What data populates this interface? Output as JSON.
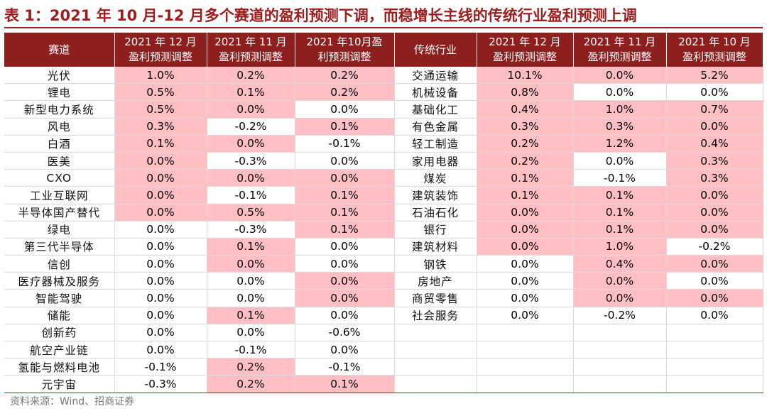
{
  "title": "表 1：2021 年 10 月-12 月多个赛道的盈利预测下调，而稳增长主线的传统行业盈利预测上调",
  "highlight_color": "#ffbfc5",
  "header_color": "#8d1f1f",
  "headers": {
    "left_name": "赛道",
    "right_name": "传统行业",
    "columns": [
      [
        "2021 年 12 月",
        "盈利预测调整"
      ],
      [
        "2021 年 11 月",
        "盈利预测调整"
      ],
      [
        "2021 年10月盈",
        "利预测调整"
      ],
      [
        "2021 年 12 月",
        "盈利预测调整"
      ],
      [
        "2021 年 11 月",
        "盈利预测调整"
      ],
      [
        "2021 年 10 月",
        "盈利预测调整"
      ]
    ]
  },
  "rows": [
    {
      "l": "光伏",
      "lv": [
        {
          "v": "1.0%",
          "h": 1
        },
        {
          "v": "0.2%",
          "h": 1
        },
        {
          "v": "0.2%",
          "h": 1
        }
      ],
      "r": "交通运输",
      "rv": [
        {
          "v": "10.1%",
          "h": 1
        },
        {
          "v": "0.0%",
          "h": 1
        },
        {
          "v": "5.2%",
          "h": 1
        }
      ]
    },
    {
      "l": "锂电",
      "lv": [
        {
          "v": "0.5%",
          "h": 1
        },
        {
          "v": "0.1%",
          "h": 1
        },
        {
          "v": "0.2%",
          "h": 1
        }
      ],
      "r": "机械设备",
      "rv": [
        {
          "v": "0.8%",
          "h": 1
        },
        {
          "v": "0.0%",
          "h": 0
        },
        {
          "v": "0.0%",
          "h": 0
        }
      ]
    },
    {
      "l": "新型电力系统",
      "lv": [
        {
          "v": "0.5%",
          "h": 1
        },
        {
          "v": "0.0%",
          "h": 1
        },
        {
          "v": "0.0%",
          "h": 0
        }
      ],
      "r": "基础化工",
      "rv": [
        {
          "v": "0.4%",
          "h": 1
        },
        {
          "v": "1.0%",
          "h": 1
        },
        {
          "v": "0.7%",
          "h": 1
        }
      ]
    },
    {
      "l": "风电",
      "lv": [
        {
          "v": "0.3%",
          "h": 1
        },
        {
          "v": "-0.2%",
          "h": 0
        },
        {
          "v": "0.1%",
          "h": 1
        }
      ],
      "r": "有色金属",
      "rv": [
        {
          "v": "0.3%",
          "h": 1
        },
        {
          "v": "0.3%",
          "h": 1
        },
        {
          "v": "0.0%",
          "h": 1
        }
      ]
    },
    {
      "l": "白酒",
      "lv": [
        {
          "v": "0.1%",
          "h": 1
        },
        {
          "v": "0.0%",
          "h": 1
        },
        {
          "v": "-0.1%",
          "h": 0
        }
      ],
      "r": "轻工制造",
      "rv": [
        {
          "v": "0.2%",
          "h": 1
        },
        {
          "v": "1.2%",
          "h": 1
        },
        {
          "v": "0.4%",
          "h": 1
        }
      ]
    },
    {
      "l": "医美",
      "lv": [
        {
          "v": "0.0%",
          "h": 1
        },
        {
          "v": "-0.3%",
          "h": 0
        },
        {
          "v": "0.0%",
          "h": 0
        }
      ],
      "r": "家用电器",
      "rv": [
        {
          "v": "0.2%",
          "h": 1
        },
        {
          "v": "0.0%",
          "h": 0
        },
        {
          "v": "0.3%",
          "h": 1
        }
      ]
    },
    {
      "l": "CXO",
      "lv": [
        {
          "v": "0.0%",
          "h": 1
        },
        {
          "v": "0.0%",
          "h": 1
        },
        {
          "v": "0.0%",
          "h": 1
        }
      ],
      "r": "煤炭",
      "rv": [
        {
          "v": "0.1%",
          "h": 1
        },
        {
          "v": "-0.1%",
          "h": 0
        },
        {
          "v": "0.3%",
          "h": 1
        }
      ]
    },
    {
      "l": "工业互联网",
      "lv": [
        {
          "v": "0.0%",
          "h": 1
        },
        {
          "v": "-0.1%",
          "h": 0
        },
        {
          "v": "0.1%",
          "h": 1
        }
      ],
      "r": "建筑装饰",
      "rv": [
        {
          "v": "0.1%",
          "h": 1
        },
        {
          "v": "0.1%",
          "h": 1
        },
        {
          "v": "0.0%",
          "h": 1
        }
      ]
    },
    {
      "l": "半导体国产替代",
      "lv": [
        {
          "v": "0.0%",
          "h": 1
        },
        {
          "v": "0.5%",
          "h": 1
        },
        {
          "v": "0.1%",
          "h": 1
        }
      ],
      "r": "石油石化",
      "rv": [
        {
          "v": "0.0%",
          "h": 1
        },
        {
          "v": "0.1%",
          "h": 1
        },
        {
          "v": "0.0%",
          "h": 1
        }
      ]
    },
    {
      "l": "绿电",
      "lv": [
        {
          "v": "0.0%",
          "h": 0
        },
        {
          "v": "-0.3%",
          "h": 0
        },
        {
          "v": "0.1%",
          "h": 1
        }
      ],
      "r": "银行",
      "rv": [
        {
          "v": "0.0%",
          "h": 1
        },
        {
          "v": "0.1%",
          "h": 1
        },
        {
          "v": "0.0%",
          "h": 1
        }
      ]
    },
    {
      "l": "第三代半导体",
      "lv": [
        {
          "v": "0.0%",
          "h": 0
        },
        {
          "v": "0.1%",
          "h": 1
        },
        {
          "v": "0.0%",
          "h": 0
        }
      ],
      "r": "建筑材料",
      "rv": [
        {
          "v": "0.0%",
          "h": 1
        },
        {
          "v": "1.0%",
          "h": 1
        },
        {
          "v": "-0.2%",
          "h": 0
        }
      ]
    },
    {
      "l": "信创",
      "lv": [
        {
          "v": "0.0%",
          "h": 0
        },
        {
          "v": "0.0%",
          "h": 1
        },
        {
          "v": "0.0%",
          "h": 0
        }
      ],
      "r": "钢铁",
      "rv": [
        {
          "v": "0.0%",
          "h": 0
        },
        {
          "v": "0.4%",
          "h": 1
        },
        {
          "v": "0.0%",
          "h": 1
        }
      ]
    },
    {
      "l": "医疗器械及服务",
      "lv": [
        {
          "v": "0.0%",
          "h": 0
        },
        {
          "v": "0.0%",
          "h": 0
        },
        {
          "v": "0.0%",
          "h": 1
        }
      ],
      "r": "房地产",
      "rv": [
        {
          "v": "0.0%",
          "h": 0
        },
        {
          "v": "0.0%",
          "h": 1
        },
        {
          "v": "0.0%",
          "h": 0
        }
      ]
    },
    {
      "l": "智能驾驶",
      "lv": [
        {
          "v": "0.0%",
          "h": 0
        },
        {
          "v": "0.0%",
          "h": 0
        },
        {
          "v": "0.0%",
          "h": 1
        }
      ],
      "r": "商贸零售",
      "rv": [
        {
          "v": "0.0%",
          "h": 0
        },
        {
          "v": "0.0%",
          "h": 1
        },
        {
          "v": "0.0%",
          "h": 1
        }
      ]
    },
    {
      "l": "储能",
      "lv": [
        {
          "v": "0.0%",
          "h": 0
        },
        {
          "v": "0.1%",
          "h": 1
        },
        {
          "v": "0.0%",
          "h": 0
        }
      ],
      "r": "社会服务",
      "rv": [
        {
          "v": "0.0%",
          "h": 0
        },
        {
          "v": "-0.2%",
          "h": 0
        },
        {
          "v": "0.0%",
          "h": 0
        }
      ]
    },
    {
      "l": "创新药",
      "lv": [
        {
          "v": "0.0%",
          "h": 0
        },
        {
          "v": "0.0%",
          "h": 0
        },
        {
          "v": "-0.6%",
          "h": 0
        }
      ],
      "r": "",
      "rv": []
    },
    {
      "l": "航空产业链",
      "lv": [
        {
          "v": "0.0%",
          "h": 0
        },
        {
          "v": "-0.1%",
          "h": 0
        },
        {
          "v": "0.0%",
          "h": 0
        }
      ],
      "r": "",
      "rv": []
    },
    {
      "l": "氢能与燃料电池",
      "lv": [
        {
          "v": "-0.1%",
          "h": 0
        },
        {
          "v": "0.2%",
          "h": 1
        },
        {
          "v": "-0.1%",
          "h": 0
        }
      ],
      "r": "",
      "rv": []
    },
    {
      "l": "元宇宙",
      "lv": [
        {
          "v": "-0.3%",
          "h": 0
        },
        {
          "v": "0.2%",
          "h": 1
        },
        {
          "v": "0.1%",
          "h": 1
        }
      ],
      "r": "",
      "rv": []
    }
  ],
  "source": "资料来源：Wind、招商证券"
}
